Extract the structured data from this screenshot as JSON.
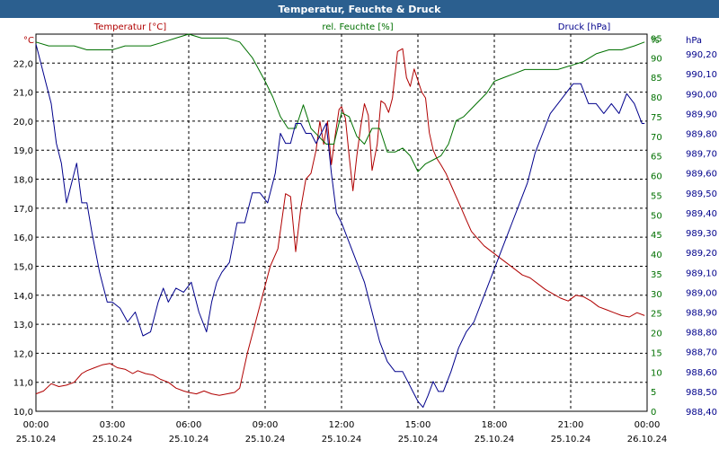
{
  "window": {
    "title": "Temperatur, Feuchte & Druck"
  },
  "colors": {
    "temperature": "#b00000",
    "humidity": "#007000",
    "pressure": "#00008b",
    "grid": "#000000",
    "axis_text": "#000000"
  },
  "chart_data": {
    "type": "line",
    "title": "Temperatur, Feuchte & Druck",
    "x_labels": [
      {
        "time": "00:00",
        "date": "25.10.24"
      },
      {
        "time": "03:00",
        "date": "25.10.24"
      },
      {
        "time": "06:00",
        "date": "25.10.24"
      },
      {
        "time": "09:00",
        "date": "25.10.24"
      },
      {
        "time": "12:00",
        "date": "25.10.24"
      },
      {
        "time": "15:00",
        "date": "25.10.24"
      },
      {
        "time": "18:00",
        "date": "25.10.24"
      },
      {
        "time": "21:00",
        "date": "25.10.24"
      },
      {
        "time": "00:00",
        "date": "26.10.24"
      }
    ],
    "x_range_hours": [
      0,
      24
    ],
    "axes": {
      "left": {
        "unit": "°C",
        "range": [
          10.0,
          23.0
        ],
        "ticks": [
          "10,0",
          "11,0",
          "12,0",
          "13,0",
          "14,0",
          "15,0",
          "16,0",
          "17,0",
          "18,0",
          "19,0",
          "20,0",
          "21,0",
          "22,0"
        ]
      },
      "humidity": {
        "unit": "%",
        "range": [
          0,
          96
        ],
        "ticks": [
          "0",
          "5",
          "10",
          "15",
          "20",
          "25",
          "30",
          "35",
          "40",
          "45",
          "50",
          "55",
          "60",
          "65",
          "70",
          "75",
          "80",
          "85",
          "90",
          "95"
        ]
      },
      "pressure": {
        "unit": "hPa",
        "range": [
          988.4,
          990.3
        ],
        "ticks": [
          "988,40",
          "988,50",
          "988,60",
          "988,70",
          "988,80",
          "988,90",
          "989,00",
          "989,10",
          "989,20",
          "989,30",
          "989,40",
          "989,50",
          "989,60",
          "989,70",
          "989,80",
          "989,90",
          "990,00",
          "990,10",
          "990,20"
        ]
      }
    },
    "legend": {
      "temperature": "Temperatur [°C]",
      "humidity": "rel. Feuchte [%]",
      "pressure": "Druck [hPa]"
    },
    "series": [
      {
        "name": "Temperatur [°C]",
        "axis": "left",
        "x": [
          0,
          0.3,
          0.6,
          0.9,
          1.2,
          1.5,
          1.8,
          2.0,
          2.3,
          2.6,
          2.9,
          3.2,
          3.5,
          3.8,
          4.0,
          4.3,
          4.6,
          4.9,
          5.2,
          5.5,
          5.8,
          6.0,
          6.3,
          6.6,
          6.9,
          7.2,
          7.5,
          7.8,
          8.0,
          8.3,
          8.6,
          8.9,
          9.2,
          9.5,
          9.8,
          10.0,
          10.2,
          10.4,
          10.6,
          10.8,
          11.0,
          11.15,
          11.3,
          11.45,
          11.6,
          11.75,
          11.9,
          12.0,
          12.15,
          12.3,
          12.45,
          12.6,
          12.75,
          12.9,
          13.05,
          13.2,
          13.4,
          13.55,
          13.7,
          13.85,
          14.0,
          14.2,
          14.4,
          14.55,
          14.7,
          14.85,
          15.0,
          15.15,
          15.3,
          15.45,
          15.6,
          15.75,
          15.9,
          16.1,
          16.3,
          16.5,
          16.7,
          16.9,
          17.1,
          17.3,
          17.6,
          17.9,
          18.2,
          18.5,
          18.8,
          19.1,
          19.4,
          19.7,
          20.0,
          20.3,
          20.6,
          20.9,
          21.2,
          21.5,
          21.8,
          22.1,
          22.4,
          22.7,
          23.0,
          23.3,
          23.6,
          23.9
        ],
        "values": [
          10.6,
          10.7,
          10.95,
          10.85,
          10.9,
          11.0,
          11.3,
          11.4,
          11.5,
          11.6,
          11.65,
          11.5,
          11.45,
          11.3,
          11.4,
          11.3,
          11.25,
          11.1,
          11.0,
          10.8,
          10.7,
          10.65,
          10.6,
          10.7,
          10.6,
          10.55,
          10.6,
          10.65,
          10.8,
          12.0,
          13.0,
          14.0,
          15.0,
          15.6,
          17.5,
          17.4,
          15.5,
          17.0,
          18.0,
          18.2,
          19.0,
          20.0,
          19.2,
          20.0,
          18.5,
          19.5,
          20.4,
          20.5,
          20.1,
          18.8,
          17.6,
          18.8,
          19.8,
          20.6,
          20.2,
          18.3,
          19.2,
          20.7,
          20.6,
          20.3,
          20.8,
          22.4,
          22.5,
          21.5,
          21.2,
          21.8,
          21.4,
          21.0,
          20.8,
          19.6,
          19.0,
          18.7,
          18.5,
          18.2,
          17.8,
          17.4,
          17.0,
          16.6,
          16.2,
          16.0,
          15.7,
          15.5,
          15.3,
          15.1,
          14.9,
          14.7,
          14.6,
          14.4,
          14.2,
          14.05,
          13.9,
          13.8,
          14.0,
          13.95,
          13.8,
          13.6,
          13.5,
          13.4,
          13.3,
          13.25,
          13.4,
          13.3
        ],
        "color": "#b00000"
      },
      {
        "name": "rel. Feuchte [%]",
        "axis": "humidity",
        "x": [
          0,
          0.5,
          1.0,
          1.5,
          2.0,
          2.5,
          3.0,
          3.5,
          4.0,
          4.5,
          5.0,
          5.5,
          6.0,
          6.5,
          7.0,
          7.5,
          8.0,
          8.5,
          9.0,
          9.3,
          9.6,
          9.9,
          10.2,
          10.5,
          10.8,
          11.1,
          11.4,
          11.7,
          12.0,
          12.3,
          12.6,
          12.9,
          13.2,
          13.5,
          13.8,
          14.1,
          14.4,
          14.7,
          15.0,
          15.3,
          15.6,
          15.9,
          16.2,
          16.5,
          16.8,
          17.1,
          17.4,
          17.7,
          18.0,
          18.4,
          18.8,
          19.2,
          19.6,
          20.0,
          20.5,
          21.0,
          21.5,
          22.0,
          22.5,
          23.0,
          23.5,
          23.9
        ],
        "values": [
          94,
          93,
          93,
          93,
          92,
          92,
          92,
          93,
          93,
          93,
          94,
          95,
          96,
          95,
          95,
          95,
          94,
          90,
          84,
          80,
          75,
          72,
          72,
          78,
          72,
          70,
          68,
          68,
          76,
          75,
          70,
          68,
          72,
          72,
          66,
          66,
          67,
          65,
          61,
          63,
          64,
          65,
          68,
          74,
          75,
          77,
          79,
          81,
          84,
          85,
          86,
          87,
          87,
          87,
          87,
          88,
          89,
          91,
          92,
          92,
          93,
          94
        ],
        "color": "#007000"
      },
      {
        "name": "Druck [hPa]",
        "axis": "pressure",
        "x": [
          0,
          0.2,
          0.4,
          0.6,
          0.8,
          1.0,
          1.2,
          1.4,
          1.6,
          1.8,
          2.0,
          2.2,
          2.5,
          2.8,
          3.0,
          3.3,
          3.6,
          3.9,
          4.2,
          4.5,
          4.8,
          5.0,
          5.2,
          5.5,
          5.8,
          6.1,
          6.4,
          6.7,
          6.9,
          7.1,
          7.3,
          7.6,
          7.9,
          8.2,
          8.5,
          8.8,
          9.1,
          9.4,
          9.6,
          9.8,
          10.0,
          10.2,
          10.4,
          10.6,
          10.8,
          11.0,
          11.2,
          11.4,
          11.6,
          11.8,
          12.0,
          12.3,
          12.6,
          12.9,
          13.2,
          13.5,
          13.8,
          14.1,
          14.4,
          14.6,
          14.8,
          15.0,
          15.2,
          15.4,
          15.6,
          15.8,
          16.0,
          16.3,
          16.6,
          16.9,
          17.2,
          17.5,
          17.8,
          18.1,
          18.4,
          18.7,
          19.0,
          19.3,
          19.6,
          19.9,
          20.2,
          20.5,
          20.8,
          21.1,
          21.4,
          21.7,
          22.0,
          22.3,
          22.6,
          22.9,
          23.2,
          23.5,
          23.8,
          23.9
        ],
        "values": [
          990.25,
          990.15,
          990.05,
          989.95,
          989.75,
          989.65,
          989.45,
          989.55,
          989.65,
          989.45,
          989.45,
          989.3,
          989.1,
          988.95,
          988.95,
          988.92,
          988.85,
          988.9,
          988.78,
          988.8,
          988.95,
          989.02,
          988.95,
          989.02,
          989.0,
          989.05,
          988.9,
          988.8,
          988.95,
          989.05,
          989.1,
          989.15,
          989.35,
          989.35,
          989.5,
          989.5,
          989.45,
          989.6,
          989.8,
          989.75,
          989.75,
          989.85,
          989.85,
          989.8,
          989.8,
          989.75,
          989.8,
          989.85,
          989.6,
          989.4,
          989.35,
          989.25,
          989.15,
          989.05,
          988.9,
          988.75,
          988.65,
          988.6,
          988.6,
          988.55,
          988.5,
          988.45,
          988.42,
          988.48,
          988.55,
          988.5,
          988.5,
          988.6,
          988.72,
          988.8,
          988.85,
          988.95,
          989.05,
          989.15,
          989.25,
          989.35,
          989.45,
          989.55,
          989.7,
          989.8,
          989.9,
          989.95,
          990.0,
          990.05,
          990.05,
          989.95,
          989.95,
          989.9,
          989.95,
          989.9,
          990.0,
          989.95,
          989.85,
          989.85
        ],
        "color": "#00008b"
      }
    ]
  }
}
